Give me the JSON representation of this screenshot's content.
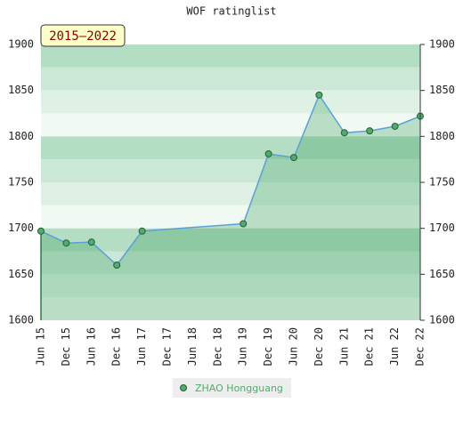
{
  "chart_data": {
    "type": "line",
    "title": "WOF ratinglist",
    "annotation": "2015–2022",
    "categories": [
      "Jun 15",
      "Dec 15",
      "Jun 16",
      "Dec 16",
      "Jun 17",
      "Dec 17",
      "Jun 18",
      "Dec 18",
      "Jun 19",
      "Dec 19",
      "Jun 20",
      "Dec 20",
      "Jun 21",
      "Dec 21",
      "Jun 22",
      "Dec 22"
    ],
    "series": [
      {
        "name": "ZHAO Hongguang",
        "color": "#5aa0d8",
        "marker_color": "#4cae6a",
        "x": [
          "Jun 15",
          "Dec 15",
          "Jun 16",
          "Dec 16",
          "Jun 17",
          "Jun 19",
          "Dec 19",
          "Jun 20",
          "Dec 20",
          "Jun 21",
          "Dec 21",
          "Jun 22",
          "Dec 22"
        ],
        "values": [
          1697,
          1684,
          1685,
          1660,
          1697,
          1705,
          1781,
          1777,
          1845,
          1804,
          1806,
          1811,
          1822
        ]
      }
    ],
    "ylim": [
      1600,
      1900
    ],
    "yticks": [
      1600,
      1650,
      1700,
      1750,
      1800,
      1850,
      1900
    ]
  }
}
